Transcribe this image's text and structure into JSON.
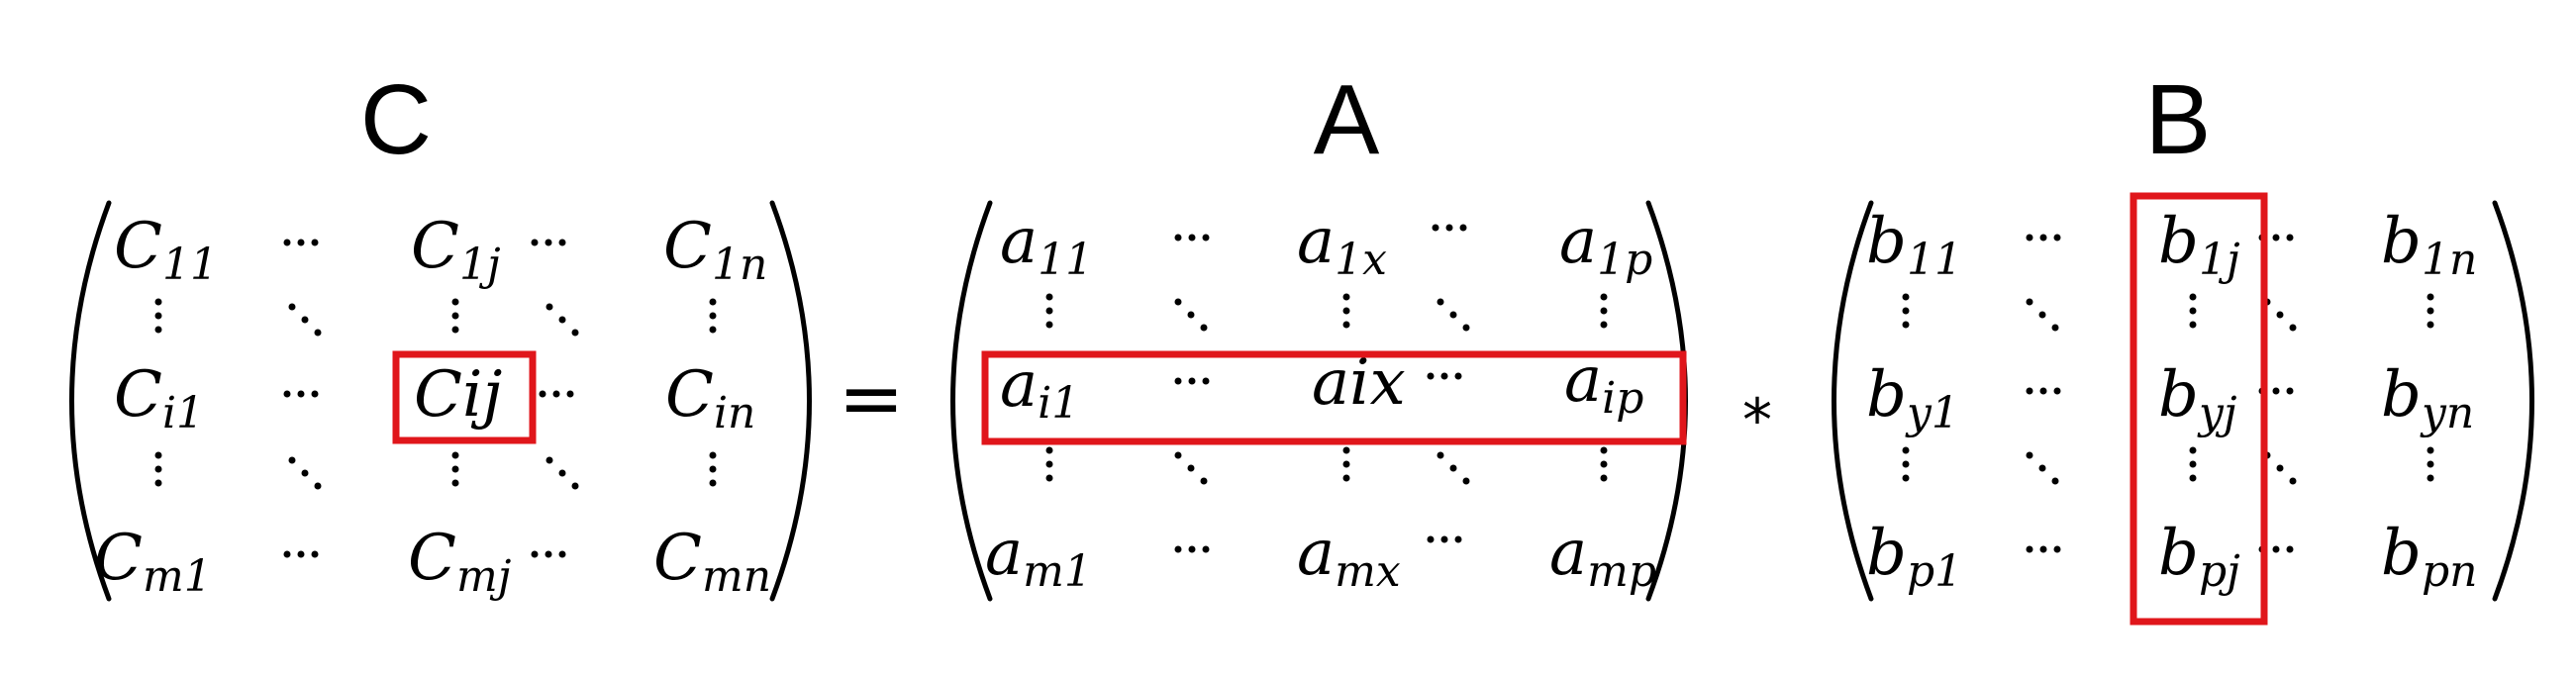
{
  "titles": {
    "c": "C",
    "a": "A",
    "b": "B"
  },
  "operators": {
    "equals": "=",
    "times": "*"
  },
  "highlight_color": "#e0161b",
  "matrix_c": {
    "row1": [
      {
        "base": "C",
        "sub": "11"
      },
      {
        "base": "C",
        "sub": "1j"
      },
      {
        "base": "C",
        "sub": "1n"
      }
    ],
    "rowi": [
      {
        "base": "C",
        "sub": "i1"
      },
      {
        "base": "Cij",
        "sub": ""
      },
      {
        "base": "C",
        "sub": "in"
      }
    ],
    "rowm": [
      {
        "base": "C",
        "sub": "m1"
      },
      {
        "base": "C",
        "sub": "mj"
      },
      {
        "base": "C",
        "sub": "mn"
      }
    ]
  },
  "matrix_a": {
    "row1": [
      {
        "base": "a",
        "sub": "11"
      },
      {
        "base": "a",
        "sub": "1x"
      },
      {
        "base": "a",
        "sub": "1p"
      }
    ],
    "rowi": [
      {
        "base": "a",
        "sub": "i1"
      },
      {
        "base": "aix",
        "sub": ""
      },
      {
        "base": "a",
        "sub": "ip"
      }
    ],
    "rowm": [
      {
        "base": "a",
        "sub": "m1"
      },
      {
        "base": "a",
        "sub": "mx"
      },
      {
        "base": "a",
        "sub": "mp"
      }
    ]
  },
  "matrix_b": {
    "row1": [
      {
        "base": "b",
        "sub": "11"
      },
      {
        "base": "b",
        "sub": "1j"
      },
      {
        "base": "b",
        "sub": "1n"
      }
    ],
    "rowy": [
      {
        "base": "b",
        "sub": "y1"
      },
      {
        "base": "b",
        "sub": "yj"
      },
      {
        "base": "b",
        "sub": "yn"
      }
    ],
    "rowp": [
      {
        "base": "b",
        "sub": "p1"
      },
      {
        "base": "b",
        "sub": "pj"
      },
      {
        "base": "b",
        "sub": "pn"
      }
    ]
  }
}
